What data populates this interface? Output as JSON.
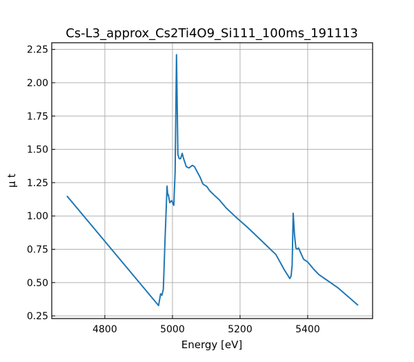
{
  "chart_data": {
    "type": "line",
    "title": "Cs-L3_approx_Cs2Ti4O9_Si111_100ms_191113",
    "xlabel": "Energy [eV]",
    "ylabel": "μ t",
    "xlim": [
      4643,
      5592
    ],
    "ylim": [
      0.23,
      2.3
    ],
    "xticks": [
      4800,
      5000,
      5200,
      5400
    ],
    "xtick_labels": [
      "4800",
      "5000",
      "5200",
      "5400"
    ],
    "yticks": [
      0.25,
      0.5,
      0.75,
      1.0,
      1.25,
      1.5,
      1.75,
      2.0,
      2.25
    ],
    "ytick_labels": [
      "0.25",
      "0.50",
      "0.75",
      "1.00",
      "1.25",
      "1.50",
      "1.75",
      "2.00",
      "2.25"
    ],
    "grid": true,
    "series": [
      {
        "name": "mu_t",
        "color": "#1f77b4",
        "x": [
          4688,
          4959,
          4965,
          4969,
          4973,
          4978,
          4984,
          4986,
          4988,
          4992,
          4998,
          5002,
          5004,
          5008,
          5012,
          5014,
          5016,
          5020,
          5024,
          5029,
          5033,
          5041,
          5049,
          5059,
          5065,
          5082,
          5090,
          5102,
          5110,
          5122,
          5139,
          5159,
          5184,
          5224,
          5265,
          5306,
          5330,
          5347,
          5351,
          5354,
          5357,
          5361,
          5365,
          5369,
          5373,
          5380,
          5388,
          5400,
          5418,
          5433,
          5453,
          5490,
          5549
        ],
        "y": [
          1.15,
          0.328,
          0.416,
          0.405,
          0.45,
          0.81,
          1.224,
          1.157,
          1.16,
          1.1,
          1.115,
          1.09,
          1.08,
          1.33,
          2.21,
          1.85,
          1.46,
          1.43,
          1.43,
          1.47,
          1.43,
          1.37,
          1.36,
          1.38,
          1.37,
          1.29,
          1.24,
          1.22,
          1.19,
          1.16,
          1.12,
          1.06,
          1.0,
          0.91,
          0.81,
          0.71,
          0.6,
          0.53,
          0.55,
          0.63,
          1.02,
          0.86,
          0.76,
          0.75,
          0.76,
          0.72,
          0.675,
          0.655,
          0.6,
          0.56,
          0.525,
          0.46,
          0.33
        ]
      }
    ]
  }
}
